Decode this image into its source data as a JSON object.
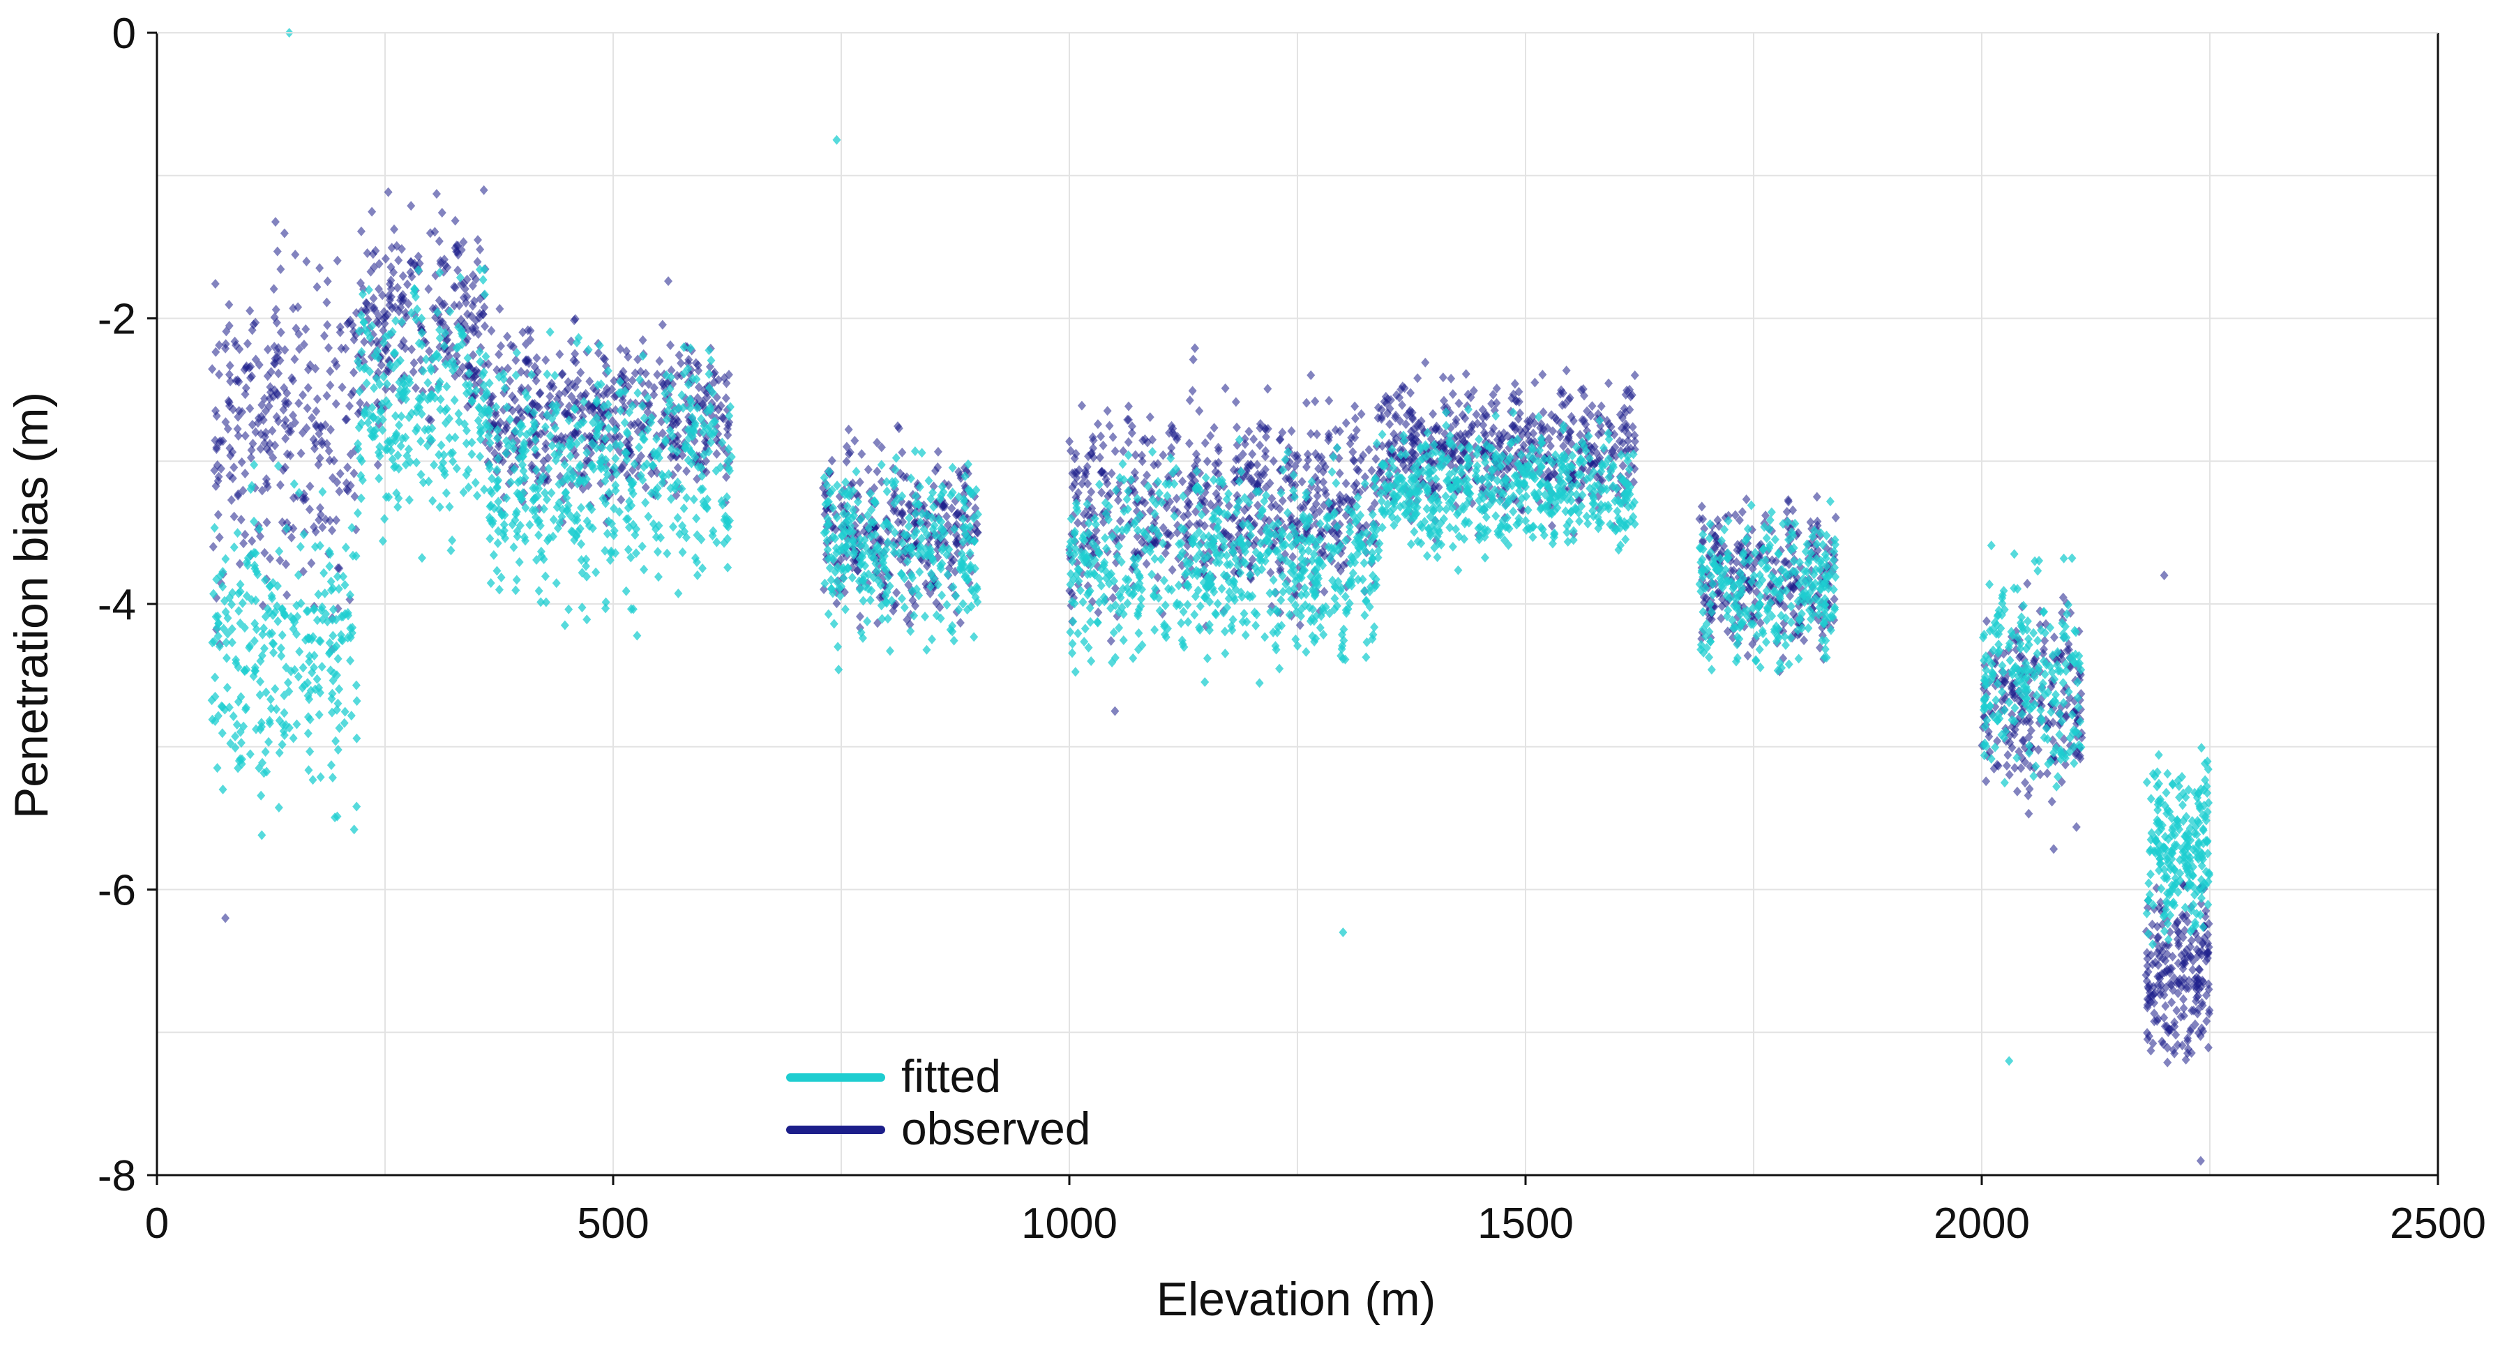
{
  "chart_data": {
    "type": "scatter",
    "title": "",
    "xlabel": "Elevation (m)",
    "ylabel": "Penetration bias (m)",
    "xlim": [
      0,
      2500
    ],
    "ylim": [
      -8,
      0
    ],
    "x_ticks": [
      0,
      500,
      1000,
      1500,
      2000,
      2500
    ],
    "x_tick_labels": [
      "0",
      "500",
      "1000",
      "1500",
      "2000",
      "2500"
    ],
    "y_ticks": [
      -8,
      -6,
      -4,
      -2,
      0
    ],
    "y_tick_labels": [
      "-8",
      "-6",
      "-4",
      "-2",
      "0"
    ],
    "grid": true,
    "legend_position": "bottom-center",
    "series": [
      {
        "name": "fitted",
        "color": "#1ecdd0",
        "marker": "small diamond",
        "clusters": [
          {
            "x_range": [
              60,
              220
            ],
            "y_center": -4.3,
            "y_spread": 0.9
          },
          {
            "x_range": [
              220,
              360
            ],
            "y_center": -2.6,
            "y_spread": 0.7
          },
          {
            "x_range": [
              360,
              630
            ],
            "y_center": -3.1,
            "y_spread": 0.7
          },
          {
            "x_range": [
              730,
              900
            ],
            "y_center": -3.6,
            "y_spread": 0.55
          },
          {
            "x_range": [
              1000,
              1340
            ],
            "y_center": -3.7,
            "y_spread": 0.55
          },
          {
            "x_range": [
              1340,
              1620
            ],
            "y_center": -3.2,
            "y_spread": 0.35
          },
          {
            "x_range": [
              1690,
              1840
            ],
            "y_center": -3.9,
            "y_spread": 0.4
          },
          {
            "x_range": [
              2000,
              2110
            ],
            "y_center": -4.5,
            "y_spread": 0.6
          },
          {
            "x_range": [
              2180,
              2250
            ],
            "y_center": -5.7,
            "y_spread": 0.5
          }
        ],
        "annotations": [
          {
            "x": 145,
            "y": 0.0
          },
          {
            "x": 745,
            "y": -0.75
          },
          {
            "x": 1300,
            "y": -6.3
          },
          {
            "x": 2030,
            "y": -7.2
          }
        ]
      },
      {
        "name": "observed",
        "color": "#1c1e8a",
        "marker": "small diamond",
        "clusters": [
          {
            "x_range": [
              60,
              220
            ],
            "y_center": -2.8,
            "y_spread": 1.0
          },
          {
            "x_range": [
              220,
              360
            ],
            "y_center": -2.0,
            "y_spread": 0.6
          },
          {
            "x_range": [
              360,
              630
            ],
            "y_center": -2.7,
            "y_spread": 0.5
          },
          {
            "x_range": [
              730,
              900
            ],
            "y_center": -3.5,
            "y_spread": 0.5
          },
          {
            "x_range": [
              1000,
              1340
            ],
            "y_center": -3.3,
            "y_spread": 0.6
          },
          {
            "x_range": [
              1340,
              1620
            ],
            "y_center": -2.9,
            "y_spread": 0.4
          },
          {
            "x_range": [
              1690,
              1840
            ],
            "y_center": -3.8,
            "y_spread": 0.4
          },
          {
            "x_range": [
              2000,
              2110
            ],
            "y_center": -4.7,
            "y_spread": 0.6
          },
          {
            "x_range": [
              2180,
              2250
            ],
            "y_center": -6.6,
            "y_spread": 0.55
          }
        ],
        "annotations": [
          {
            "x": 75,
            "y": -6.2
          },
          {
            "x": 1050,
            "y": -4.75
          },
          {
            "x": 2200,
            "y": -3.8
          },
          {
            "x": 2240,
            "y": -7.9
          }
        ]
      }
    ]
  }
}
